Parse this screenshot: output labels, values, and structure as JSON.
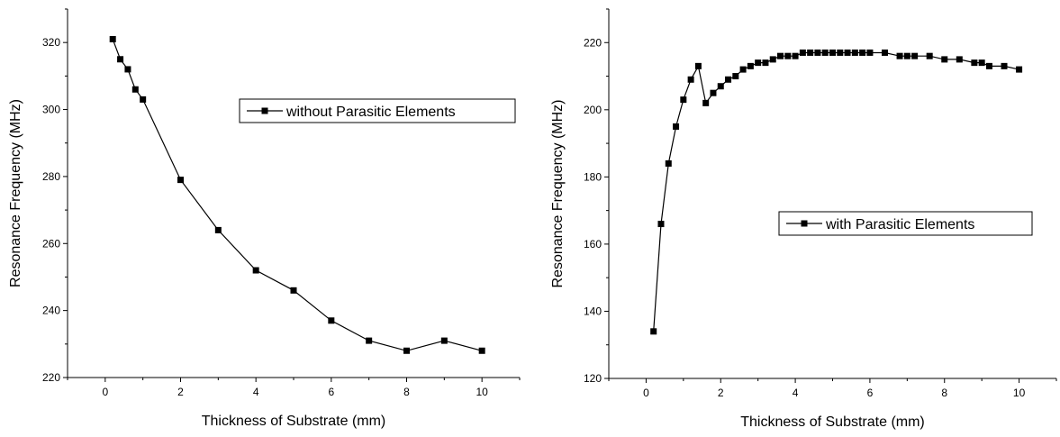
{
  "chart_data": [
    {
      "type": "line",
      "xlabel": "Thickness of Substrate (mm)",
      "ylabel": "Resonance Frequency (MHz)",
      "xlim": [
        -1,
        11
      ],
      "ylim": [
        220,
        330
      ],
      "xticks": [
        0,
        2,
        4,
        6,
        8,
        10
      ],
      "yticks": [
        220,
        240,
        260,
        280,
        300,
        320
      ],
      "legend": "center-right",
      "grid": false,
      "series": [
        {
          "name": "without Parasitic Elements",
          "color": "#000000",
          "marker": "square",
          "x": [
            0.2,
            0.4,
            0.6,
            0.8,
            1,
            2,
            3,
            4,
            5,
            6,
            7,
            8,
            9,
            10
          ],
          "y": [
            321,
            315,
            312,
            306,
            303,
            279,
            264,
            252,
            246,
            237,
            231,
            228,
            231,
            228
          ]
        }
      ]
    },
    {
      "type": "line",
      "xlabel": "Thickness of Substrate (mm)",
      "ylabel": "Resonance Frequency (MHz)",
      "xlim": [
        -1,
        11
      ],
      "ylim": [
        120,
        230
      ],
      "xticks": [
        0,
        2,
        4,
        6,
        8,
        10
      ],
      "yticks": [
        120,
        140,
        160,
        180,
        200,
        220
      ],
      "legend": "center-right",
      "grid": false,
      "series": [
        {
          "name": "with Parasitic Elements",
          "color": "#000000",
          "marker": "square",
          "x": [
            0.2,
            0.4,
            0.6,
            0.8,
            1.0,
            1.2,
            1.4,
            1.6,
            1.8,
            2.0,
            2.2,
            2.4,
            2.6,
            2.8,
            3.0,
            3.2,
            3.4,
            3.6,
            3.8,
            4.0,
            4.2,
            4.4,
            4.6,
            4.8,
            5.0,
            5.2,
            5.4,
            5.6,
            5.8,
            6.0,
            6.4,
            6.8,
            7.0,
            7.2,
            7.6,
            8.0,
            8.4,
            8.8,
            9.0,
            9.2,
            9.6,
            10.0
          ],
          "y": [
            134,
            166,
            184,
            195,
            203,
            209,
            213,
            202,
            205,
            207,
            209,
            210,
            212,
            213,
            214,
            214,
            215,
            216,
            216,
            216,
            217,
            217,
            217,
            217,
            217,
            217,
            217,
            217,
            217,
            217,
            217,
            216,
            216,
            216,
            216,
            215,
            215,
            214,
            214,
            213,
            213,
            212
          ]
        }
      ]
    }
  ]
}
